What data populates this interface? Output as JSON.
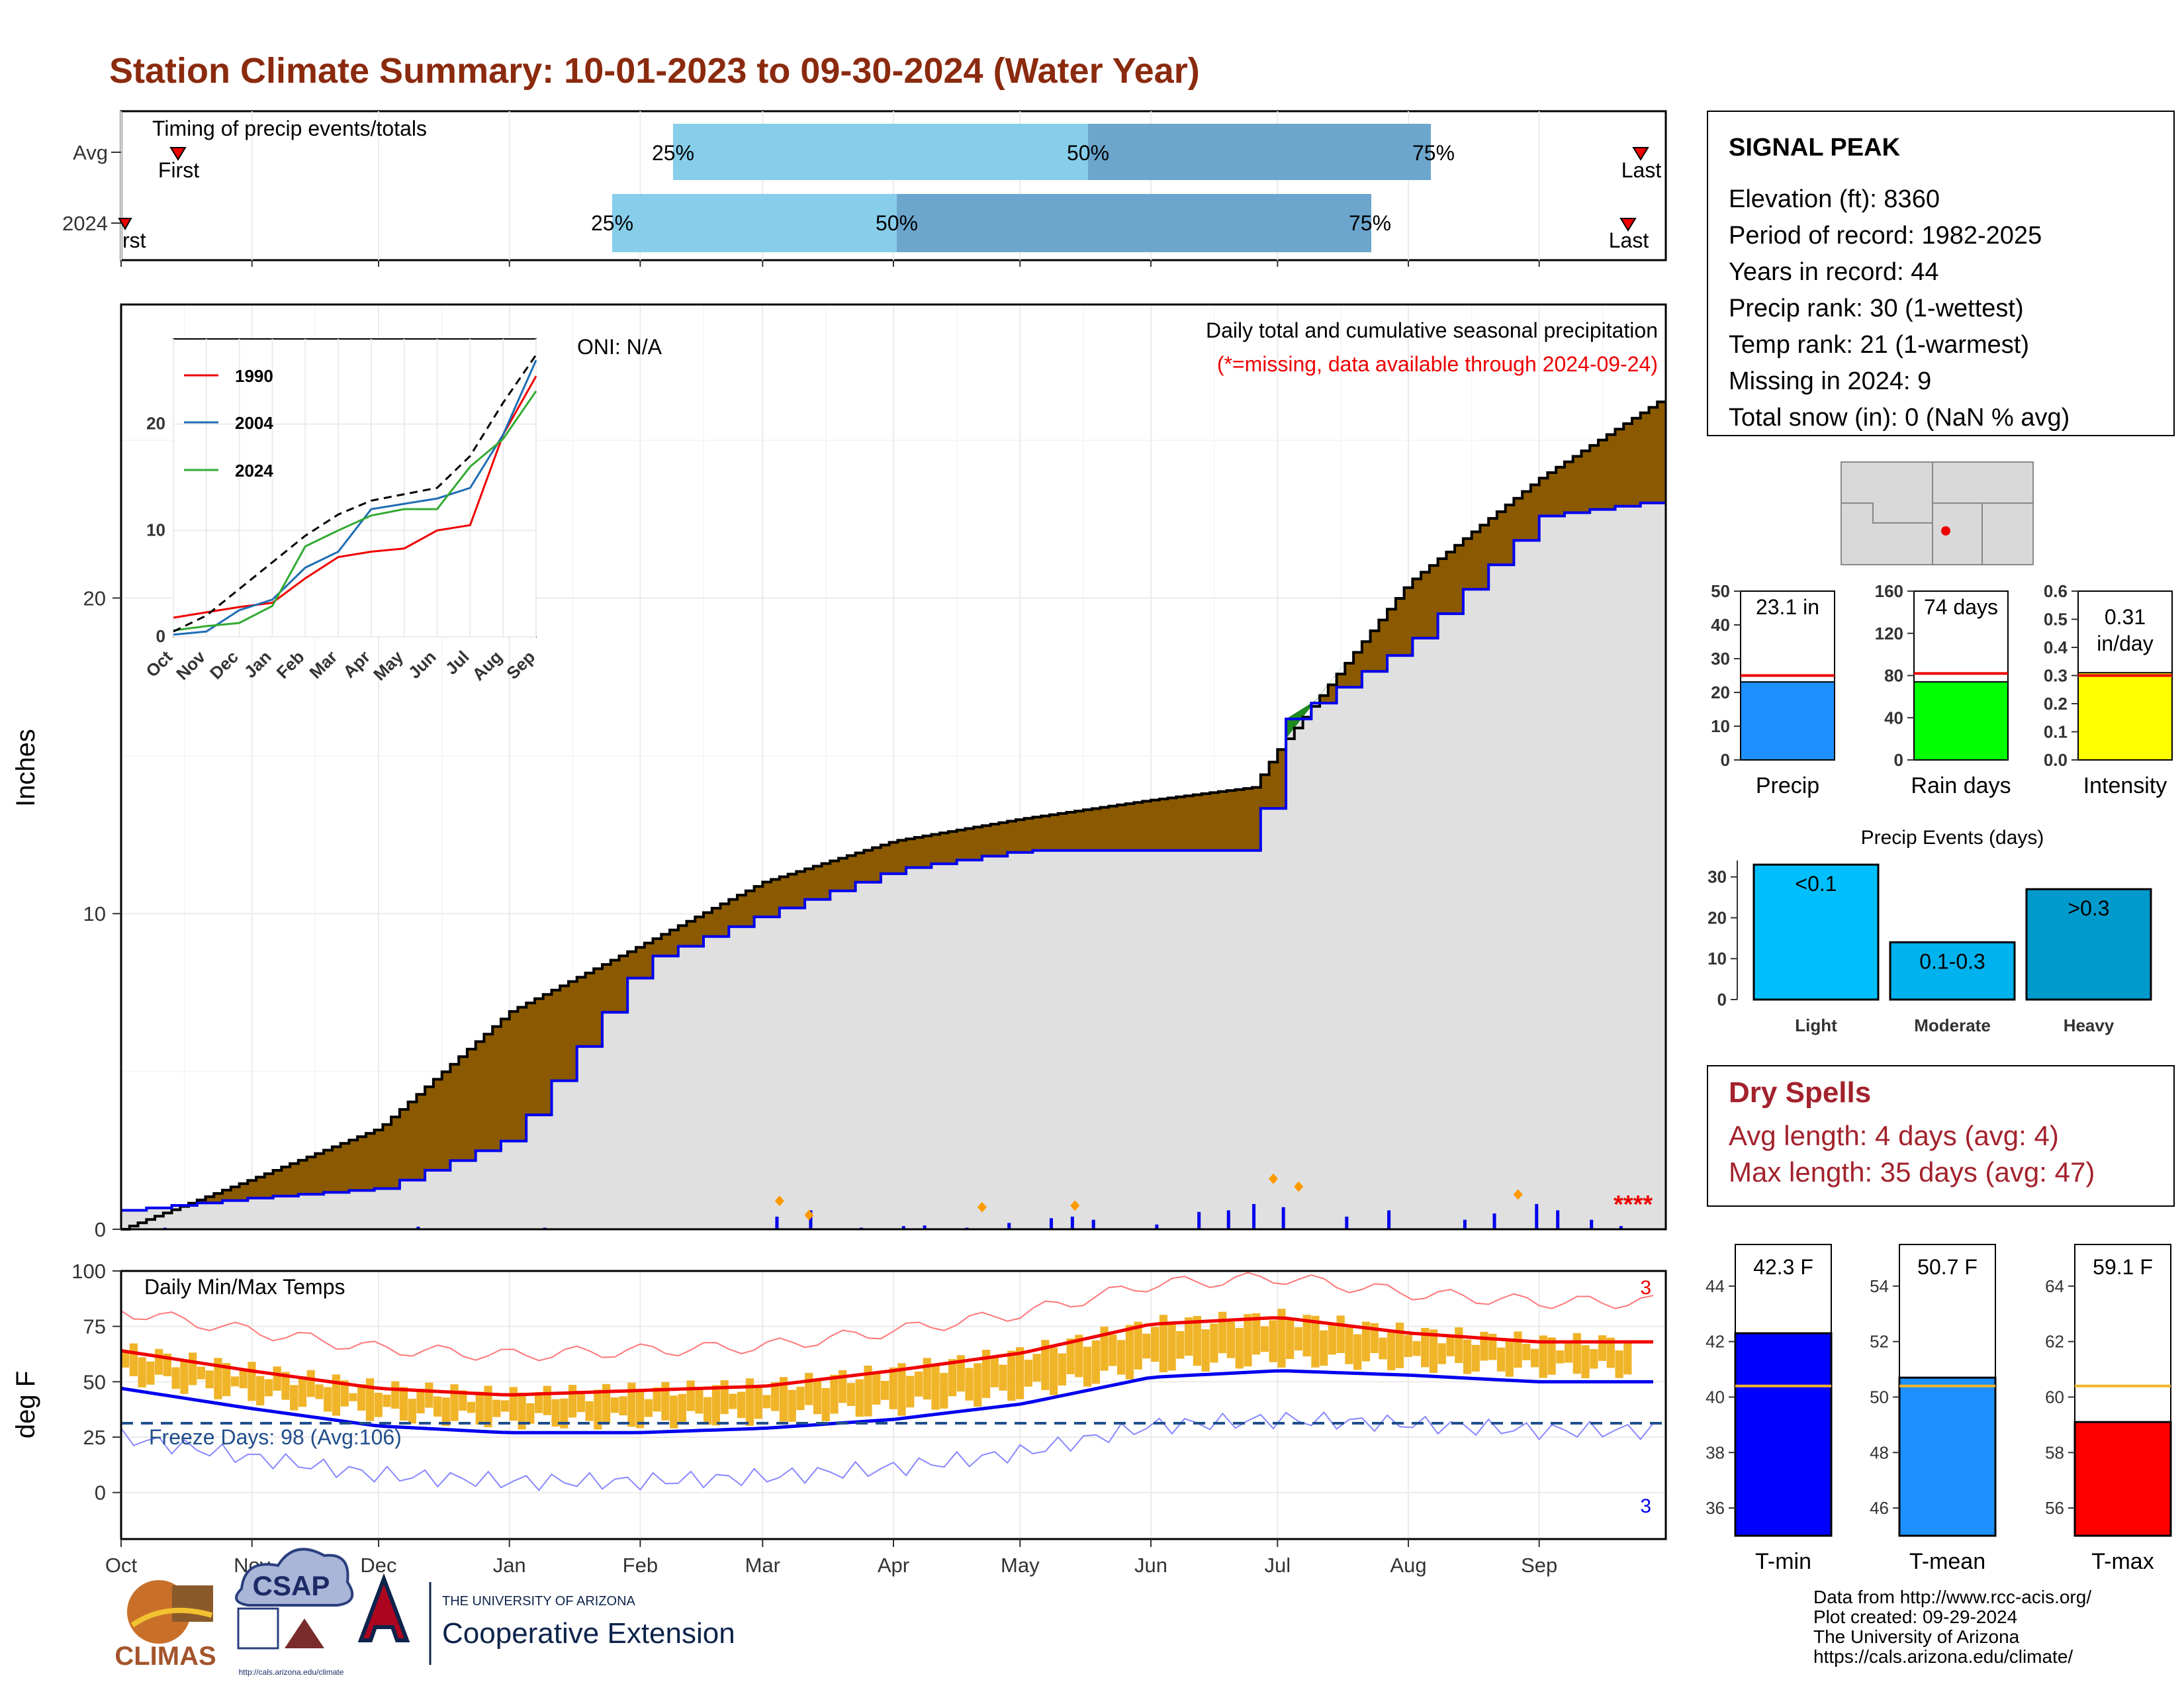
{
  "title": "Station Climate Summary: 10-01-2023 to 09-30-2024 (Water Year)",
  "timing": {
    "label": "Timing of precip events/totals",
    "rows": [
      "Avg",
      "2024"
    ],
    "avg": {
      "first": "First",
      "last": "Last",
      "p25": "25%",
      "p50": "50%",
      "p75": "75%"
    },
    "y2024": {
      "first": "rst",
      "last": "Last",
      "p25": "25%",
      "p50": "50%",
      "p75": "75%"
    }
  },
  "station": {
    "name": "SIGNAL PEAK",
    "lines": [
      "Elevation (ft): 8360",
      "Period of record: 1982-2025",
      "Years in record: 44",
      "Precip rank: 30 (1-wettest)",
      "Temp rank: 21 (1-warmest)",
      "Missing in 2024: 9",
      "Total snow (in): 0 (NaN % avg)"
    ]
  },
  "precip_panel": {
    "ylabel": "Inches",
    "oni": "ONI: N/A",
    "note1": "Daily total and cumulative seasonal precipitation",
    "note2": "(*=missing, data available through 2024-09-24)",
    "missing_marks": "****",
    "yticks": [
      "0",
      "10",
      "20"
    ]
  },
  "inset": {
    "legend": [
      "1990",
      "2004",
      "2024"
    ],
    "xticks": [
      "Oct",
      "Nov",
      "Dec",
      "Jan",
      "Feb",
      "Mar",
      "Apr",
      "May",
      "Jun",
      "Jul",
      "Aug",
      "Sep"
    ],
    "yticks": [
      "0",
      "10",
      "20"
    ]
  },
  "months": [
    "Oct",
    "Nov",
    "Dec",
    "Jan",
    "Feb",
    "Mar",
    "Apr",
    "May",
    "Jun",
    "Jul",
    "Aug",
    "Sep"
  ],
  "temp_panel": {
    "ylabel": "deg F",
    "label": "Daily Min/Max Temps",
    "freeze": "Freeze Days: 98 (Avg:106)",
    "record_hi": "3",
    "record_lo": "3",
    "yticks": [
      "0",
      "25",
      "50",
      "75",
      "100"
    ]
  },
  "mini_bars": [
    {
      "label": "Precip",
      "value_text": "23.1 in",
      "value": 23.1,
      "avg": 25,
      "ymax": 50,
      "yticks": [
        "0",
        "10",
        "20",
        "30",
        "40",
        "50"
      ],
      "color": "#1e90ff"
    },
    {
      "label": "Rain days",
      "value_text": "74 days",
      "value": 74,
      "avg": 82,
      "ymax": 160,
      "yticks": [
        "0",
        "40",
        "80",
        "120",
        "160"
      ],
      "color": "#00ff00"
    },
    {
      "label": "Intensity",
      "value_text": "0.31",
      "value_text2": "in/day",
      "value": 0.31,
      "avg": 0.3,
      "ymax": 0.6,
      "yticks": [
        "0.0",
        "0.1",
        "0.2",
        "0.3",
        "0.4",
        "0.5",
        "0.6"
      ],
      "color": "#ffff00"
    }
  ],
  "events": {
    "title": "Precip Events (days)",
    "yticks": [
      "0",
      "10",
      "20",
      "30"
    ],
    "bars": [
      {
        "label": "Light",
        "text": "<0.1",
        "value": 33,
        "color": "#00bfff"
      },
      {
        "label": "Moderate",
        "text": "0.1-0.3",
        "value": 14,
        "color": "#00b2ee"
      },
      {
        "label": "Heavy",
        "text": ">0.3",
        "value": 27,
        "color": "#009acd"
      }
    ]
  },
  "dry_spells": {
    "title": "Dry Spells",
    "line1": "Avg length: 4 days (avg: 4)",
    "line2": "Max length: 35 days (avg: 47)"
  },
  "temp_bars": [
    {
      "label": "T-min",
      "value_text": "42.3 F",
      "value": 42.3,
      "avg": 40.4,
      "ymin": 35,
      "ymax": 45.5,
      "yticks": [
        "36",
        "38",
        "40",
        "42",
        "44"
      ],
      "color": "#0000ff"
    },
    {
      "label": "T-mean",
      "value_text": "50.7 F",
      "value": 50.7,
      "avg": 50.4,
      "ymin": 45,
      "ymax": 55.5,
      "yticks": [
        "46",
        "48",
        "50",
        "52",
        "54"
      ],
      "color": "#1e90ff"
    },
    {
      "label": "T-max",
      "value_text": "59.1 F",
      "value": 59.1,
      "avg": 60.4,
      "ymin": 55,
      "ymax": 65.5,
      "yticks": [
        "56",
        "58",
        "60",
        "62",
        "64"
      ],
      "color": "#ff0000"
    }
  ],
  "footer": {
    "lines": [
      "Data from http://www.rcc-acis.org/",
      "Plot created: 09-29-2024",
      "The University of Arizona",
      "https://cals.arizona.edu/climate/"
    ],
    "climas": "CLIMAS",
    "csap": "CSAP",
    "csap_url": "http://cals.arizona.edu/climate",
    "ua_small": "THE UNIVERSITY OF ARIZONA",
    "ua_big": "Cooperative Extension"
  },
  "chart_data": [
    {
      "type": "area",
      "title": "Daily total and cumulative seasonal precipitation",
      "ylabel": "Inches",
      "xlabel": "",
      "ylim": [
        0,
        29
      ],
      "x": [
        "2023-10-01",
        "2023-11-01",
        "2023-12-01",
        "2024-01-01",
        "2024-02-01",
        "2024-03-01",
        "2024-04-01",
        "2024-05-01",
        "2024-06-01",
        "2024-06-25",
        "2024-07-01",
        "2024-08-01",
        "2024-09-01",
        "2024-09-30"
      ],
      "series": [
        {
          "name": "Avg cumulative",
          "values": [
            0,
            1.6,
            3.2,
            6.9,
            9.0,
            11.0,
            12.3,
            13.0,
            13.6,
            14.0,
            15.2,
            20.5,
            23.8,
            26.3
          ]
        },
        {
          "name": "2024 cumulative",
          "values": [
            0.6,
            1.0,
            1.3,
            2.9,
            8.5,
            10.0,
            11.4,
            12.0,
            12.0,
            12.0,
            16.0,
            18.6,
            22.6,
            23.1
          ]
        }
      ]
    },
    {
      "type": "line",
      "title": "Daily Min/Max Temps",
      "ylabel": "deg F",
      "ylim": [
        -20,
        100
      ],
      "x": [
        "Oct",
        "Nov",
        "Dec",
        "Jan",
        "Feb",
        "Mar",
        "Apr",
        "May",
        "Jun",
        "Jul",
        "Aug",
        "Sep"
      ],
      "series": [
        {
          "name": "Avg max",
          "values": [
            64,
            55,
            47,
            44,
            46,
            48,
            55,
            63,
            76,
            79,
            72,
            68
          ]
        },
        {
          "name": "Avg min",
          "values": [
            47,
            38,
            30,
            27,
            27,
            29,
            33,
            40,
            52,
            55,
            53,
            50
          ]
        }
      ]
    },
    {
      "type": "line",
      "title": "",
      "x": [
        "Oct",
        "Nov",
        "Dec",
        "Jan",
        "Feb",
        "Mar",
        "Apr",
        "May",
        "Jun",
        "Jul",
        "Aug",
        "Sep"
      ],
      "ylim": [
        0,
        28
      ],
      "series": [
        {
          "name": "1990",
          "values": [
            1.8,
            2.3,
            2.8,
            3.2,
            5.5,
            7.5,
            8.0,
            8.3,
            10.0,
            10.5,
            19.0,
            24.5
          ]
        },
        {
          "name": "2004",
          "values": [
            0.2,
            0.5,
            2.5,
            3.5,
            6.5,
            8.0,
            12.0,
            12.5,
            13.0,
            14.0,
            19.0,
            26.0
          ]
        },
        {
          "name": "2024",
          "values": [
            0.6,
            1.0,
            1.3,
            2.9,
            8.5,
            10.0,
            11.4,
            12.0,
            12.0,
            16.0,
            18.6,
            23.1
          ]
        }
      ]
    },
    {
      "type": "bar",
      "title": "Precip Events (days)",
      "categories": [
        "Light",
        "Moderate",
        "Heavy"
      ],
      "values": [
        33,
        14,
        27
      ]
    }
  ]
}
